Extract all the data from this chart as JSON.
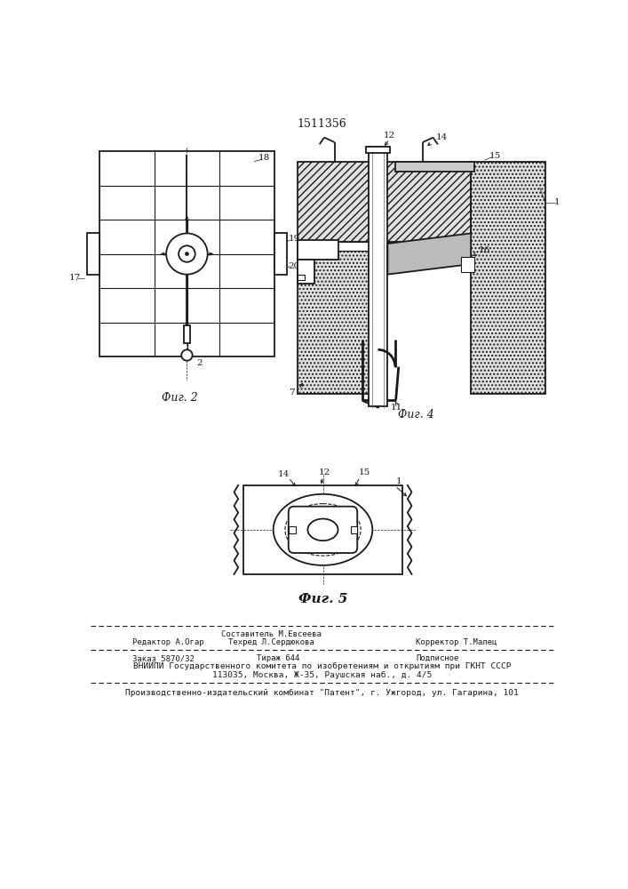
{
  "patent_number": "1511356",
  "background_color": "#ffffff",
  "line_color": "#1a1a1a",
  "fig_width": 7.07,
  "fig_height": 10.0,
  "footer_line0_center": "Составитель М.Евсеева",
  "footer_line1_left": "Редактор А.Огар",
  "footer_line1_center": "Техред Л.Сердюкова",
  "footer_line1_right": "Корректор Т.Малец",
  "footer_line2_left": "Заказ 5870/32",
  "footer_line2_center": "Тираж 644",
  "footer_line2_right": "Подписное",
  "footer_line3": "ВНИИПИ Государственного комитета по изобретениям и открытиям при ГКНТ СССР",
  "footer_line4": "113035, Москва, Ж-35, Раушская наб., д. 4/5",
  "footer_line5": "Производственно-издательский комбинат \"Патент\", г. Ужгород, ул. Гагарина, 101",
  "fig2_caption": "Фиг. 2",
  "fig4_caption": "Фиг. 4",
  "fig5_caption": "Фиг. 5"
}
